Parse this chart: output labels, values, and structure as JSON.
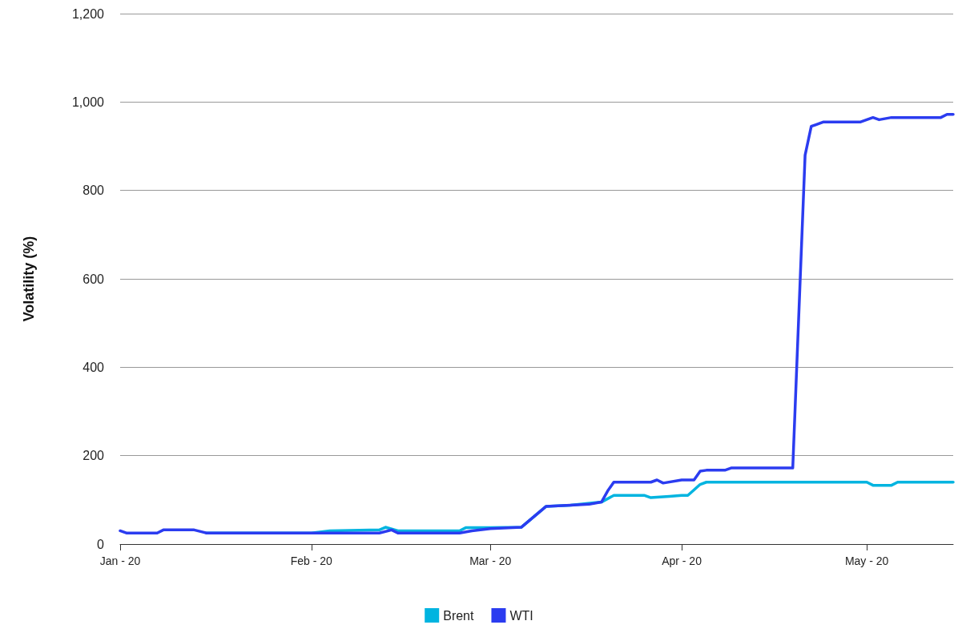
{
  "chart_data": {
    "type": "line",
    "ylabel": "Volatility (%)",
    "legend": "bottom",
    "grid": "y",
    "marker": "none",
    "line_style": "solid",
    "xlim": [
      "2020-01-01",
      "2020-05-15"
    ],
    "xticks": [
      {
        "value": "2020-01-01",
        "label": "Jan - 20"
      },
      {
        "value": "2020-02-01",
        "label": "Feb - 20"
      },
      {
        "value": "2020-03-01",
        "label": "Mar - 20"
      },
      {
        "value": "2020-04-01",
        "label": "Apr - 20"
      },
      {
        "value": "2020-05-01",
        "label": "May - 20"
      }
    ],
    "ylim": [
      0,
      1200
    ],
    "yticks": [
      0,
      200,
      400,
      600,
      800,
      {
        "value": 1000,
        "label": "1,000"
      },
      {
        "value": 1200,
        "label": "1,200"
      }
    ],
    "series": [
      {
        "name": "Brent",
        "color": "#00b4e0",
        "x": [
          "2020-01-15",
          "2020-02-01",
          "2020-02-04",
          "2020-02-12",
          "2020-02-13",
          "2020-02-15",
          "2020-02-25",
          "2020-02-26",
          "2020-03-01",
          "2020-03-06",
          "2020-03-10",
          "2020-03-14",
          "2020-03-19",
          "2020-03-21",
          "2020-03-26",
          "2020-03-27",
          "2020-03-30",
          "2020-04-01",
          "2020-04-02",
          "2020-04-04",
          "2020-04-05",
          "2020-05-01",
          "2020-05-02",
          "2020-05-05",
          "2020-05-06",
          "2020-05-15"
        ],
        "values": [
          25,
          25,
          30,
          32,
          38,
          30,
          30,
          37,
          37,
          38,
          85,
          88,
          95,
          110,
          110,
          105,
          108,
          110,
          110,
          135,
          140,
          140,
          133,
          133,
          140,
          140
        ]
      },
      {
        "name": "WTI",
        "color": "#2b3cf0",
        "x": [
          "2020-01-01",
          "2020-01-02",
          "2020-01-07",
          "2020-01-08",
          "2020-01-13",
          "2020-01-15",
          "2020-02-12",
          "2020-02-14",
          "2020-02-15",
          "2020-02-25",
          "2020-02-27",
          "2020-03-01",
          "2020-03-06",
          "2020-03-10",
          "2020-03-14",
          "2020-03-17",
          "2020-03-19",
          "2020-03-20",
          "2020-03-21",
          "2020-03-27",
          "2020-03-28",
          "2020-03-29",
          "2020-04-01",
          "2020-04-03",
          "2020-04-04",
          "2020-04-05",
          "2020-04-08",
          "2020-04-09",
          "2020-04-19",
          "2020-04-21",
          "2020-04-22",
          "2020-04-24",
          "2020-04-30",
          "2020-05-01",
          "2020-05-02",
          "2020-05-03",
          "2020-05-05",
          "2020-05-13",
          "2020-05-14",
          "2020-05-15"
        ],
        "values": [
          30,
          25,
          25,
          32,
          32,
          25,
          25,
          32,
          25,
          25,
          30,
          35,
          38,
          85,
          88,
          90,
          95,
          120,
          140,
          140,
          145,
          138,
          145,
          145,
          165,
          167,
          167,
          172,
          172,
          880,
          945,
          955,
          955,
          960,
          965,
          960,
          965,
          965,
          972,
          972
        ]
      }
    ]
  }
}
